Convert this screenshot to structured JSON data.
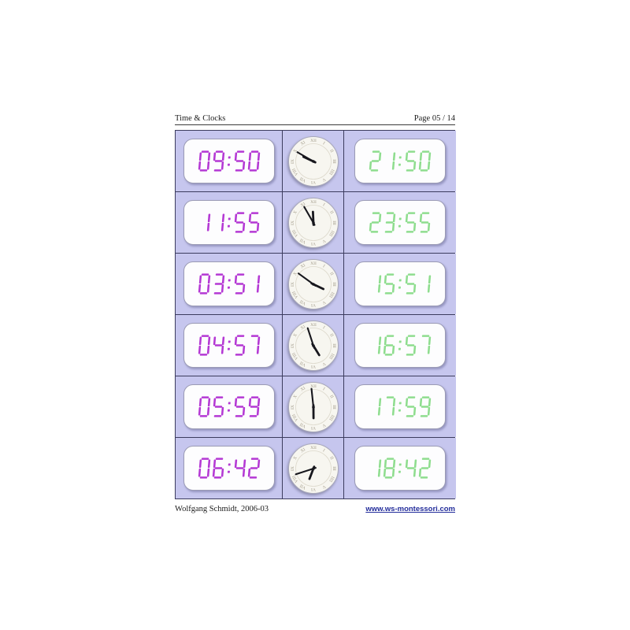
{
  "header": {
    "title": "Time & Clocks",
    "page": "Page 05 / 14"
  },
  "footer": {
    "author": "Wolfgang Schmidt, 2006-03",
    "website": "www.ws-montessori.com"
  },
  "colors": {
    "digit_12h": "#b438d4",
    "digit_24h": "#8edd8e",
    "cell_background": "#c6c6ee",
    "grid_line": "#3c3c5e",
    "link": "#232d9b"
  },
  "clock_face": {
    "numerals": [
      "XII",
      "I",
      "II",
      "III",
      "IIII",
      "V",
      "VI",
      "VII",
      "VIII",
      "IX",
      "X",
      "XI"
    ]
  },
  "rows": [
    {
      "left_time": "09:50",
      "clock": {
        "hour": 9,
        "minute": 50
      },
      "right_time": "21:50"
    },
    {
      "left_time": "11:55",
      "clock": {
        "hour": 11,
        "minute": 55
      },
      "right_time": "23:55"
    },
    {
      "left_time": "03:51",
      "clock": {
        "hour": 3,
        "minute": 51
      },
      "right_time": "15:51"
    },
    {
      "left_time": "04:57",
      "clock": {
        "hour": 4,
        "minute": 57
      },
      "right_time": "16:57"
    },
    {
      "left_time": "05:59",
      "clock": {
        "hour": 5,
        "minute": 59
      },
      "right_time": "17:59"
    },
    {
      "left_time": "06:42",
      "clock": {
        "hour": 6,
        "minute": 42
      },
      "right_time": "18:42"
    }
  ]
}
